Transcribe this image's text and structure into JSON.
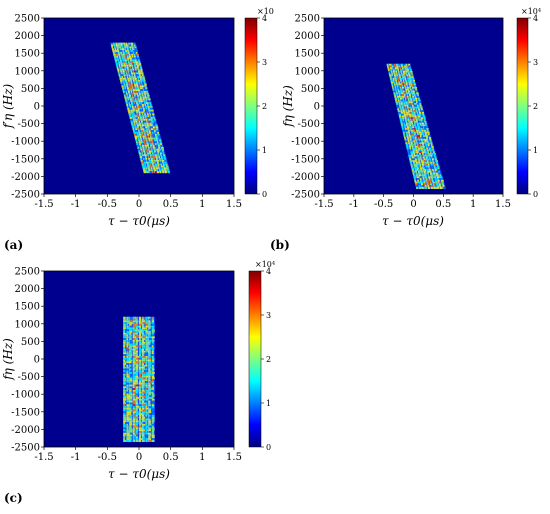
{
  "colorscale": {
    "name": "jet",
    "stops": [
      "#00007f",
      "#0000ff",
      "#007fff",
      "#00ffff",
      "#7fff7f",
      "#ffff00",
      "#ff7f00",
      "#ff0000",
      "#7f0000"
    ]
  },
  "chart_data": [
    {
      "type": "heatmap",
      "panel_label": "(a)",
      "xlabel": "τ − τ0(μs)",
      "ylabel": "f′η (Hz)",
      "xlim": [
        -1.5,
        1.5
      ],
      "ylim": [
        -2500,
        2500
      ],
      "xticks": [
        "-1.5",
        "-1",
        "-0.5",
        "0",
        "0.5",
        "1",
        "1.5"
      ],
      "yticks": [
        "-2500",
        "-2000",
        "-1500",
        "-1000",
        "-500",
        "0",
        "500",
        "1000",
        "1500",
        "2000",
        "2500"
      ],
      "colorbar": {
        "range": [
          0,
          40000
        ],
        "exponent_label": "×10",
        "ticks": [
          "0",
          "1",
          "2",
          "3",
          "4"
        ]
      },
      "band": {
        "top_x": [
          -0.45,
          -0.05
        ],
        "bottom_x": [
          0.08,
          0.5
        ],
        "y_range": [
          -1900,
          1800
        ]
      }
    },
    {
      "type": "heatmap",
      "panel_label": "(b)",
      "xlabel": "τ − τ0(μs)",
      "ylabel": "fη (Hz)",
      "xlim": [
        -1.5,
        1.5
      ],
      "ylim": [
        -2500,
        2500
      ],
      "xticks": [
        "-1.5",
        "-1",
        "-0.5",
        "0",
        "0.5",
        "1",
        "1.5"
      ],
      "yticks": [
        "-2500",
        "-2000",
        "-1500",
        "-1000",
        "-500",
        "0",
        "500",
        "1000",
        "1500",
        "2000",
        "2500"
      ],
      "colorbar": {
        "range": [
          0,
          40000
        ],
        "exponent_label": "×10⁴",
        "ticks": [
          "0",
          "1",
          "2",
          "3",
          "4"
        ]
      },
      "band": {
        "top_x": [
          -0.45,
          -0.05
        ],
        "bottom_x": [
          0.05,
          0.55
        ],
        "y_range": [
          -2350,
          1200
        ]
      }
    },
    {
      "type": "heatmap",
      "panel_label": "(c)",
      "xlabel": "τ − τ0(μs)",
      "ylabel": "fη (Hz)",
      "xlim": [
        -1.5,
        1.5
      ],
      "ylim": [
        -2500,
        2500
      ],
      "xticks": [
        "-1.5",
        "-1",
        "-0.5",
        "0",
        "0.5",
        "1",
        "1.5"
      ],
      "yticks": [
        "-2500",
        "-2000",
        "-1500",
        "-1000",
        "-500",
        "0",
        "500",
        "1000",
        "1500",
        "2000",
        "2500"
      ],
      "colorbar": {
        "range": [
          0,
          40000
        ],
        "exponent_label": "×10⁴",
        "ticks": [
          "0",
          "1",
          "2",
          "3",
          "4"
        ]
      },
      "band": {
        "top_x": [
          -0.25,
          0.25
        ],
        "bottom_x": [
          -0.25,
          0.25
        ],
        "y_range": [
          -2350,
          1200
        ]
      }
    }
  ]
}
